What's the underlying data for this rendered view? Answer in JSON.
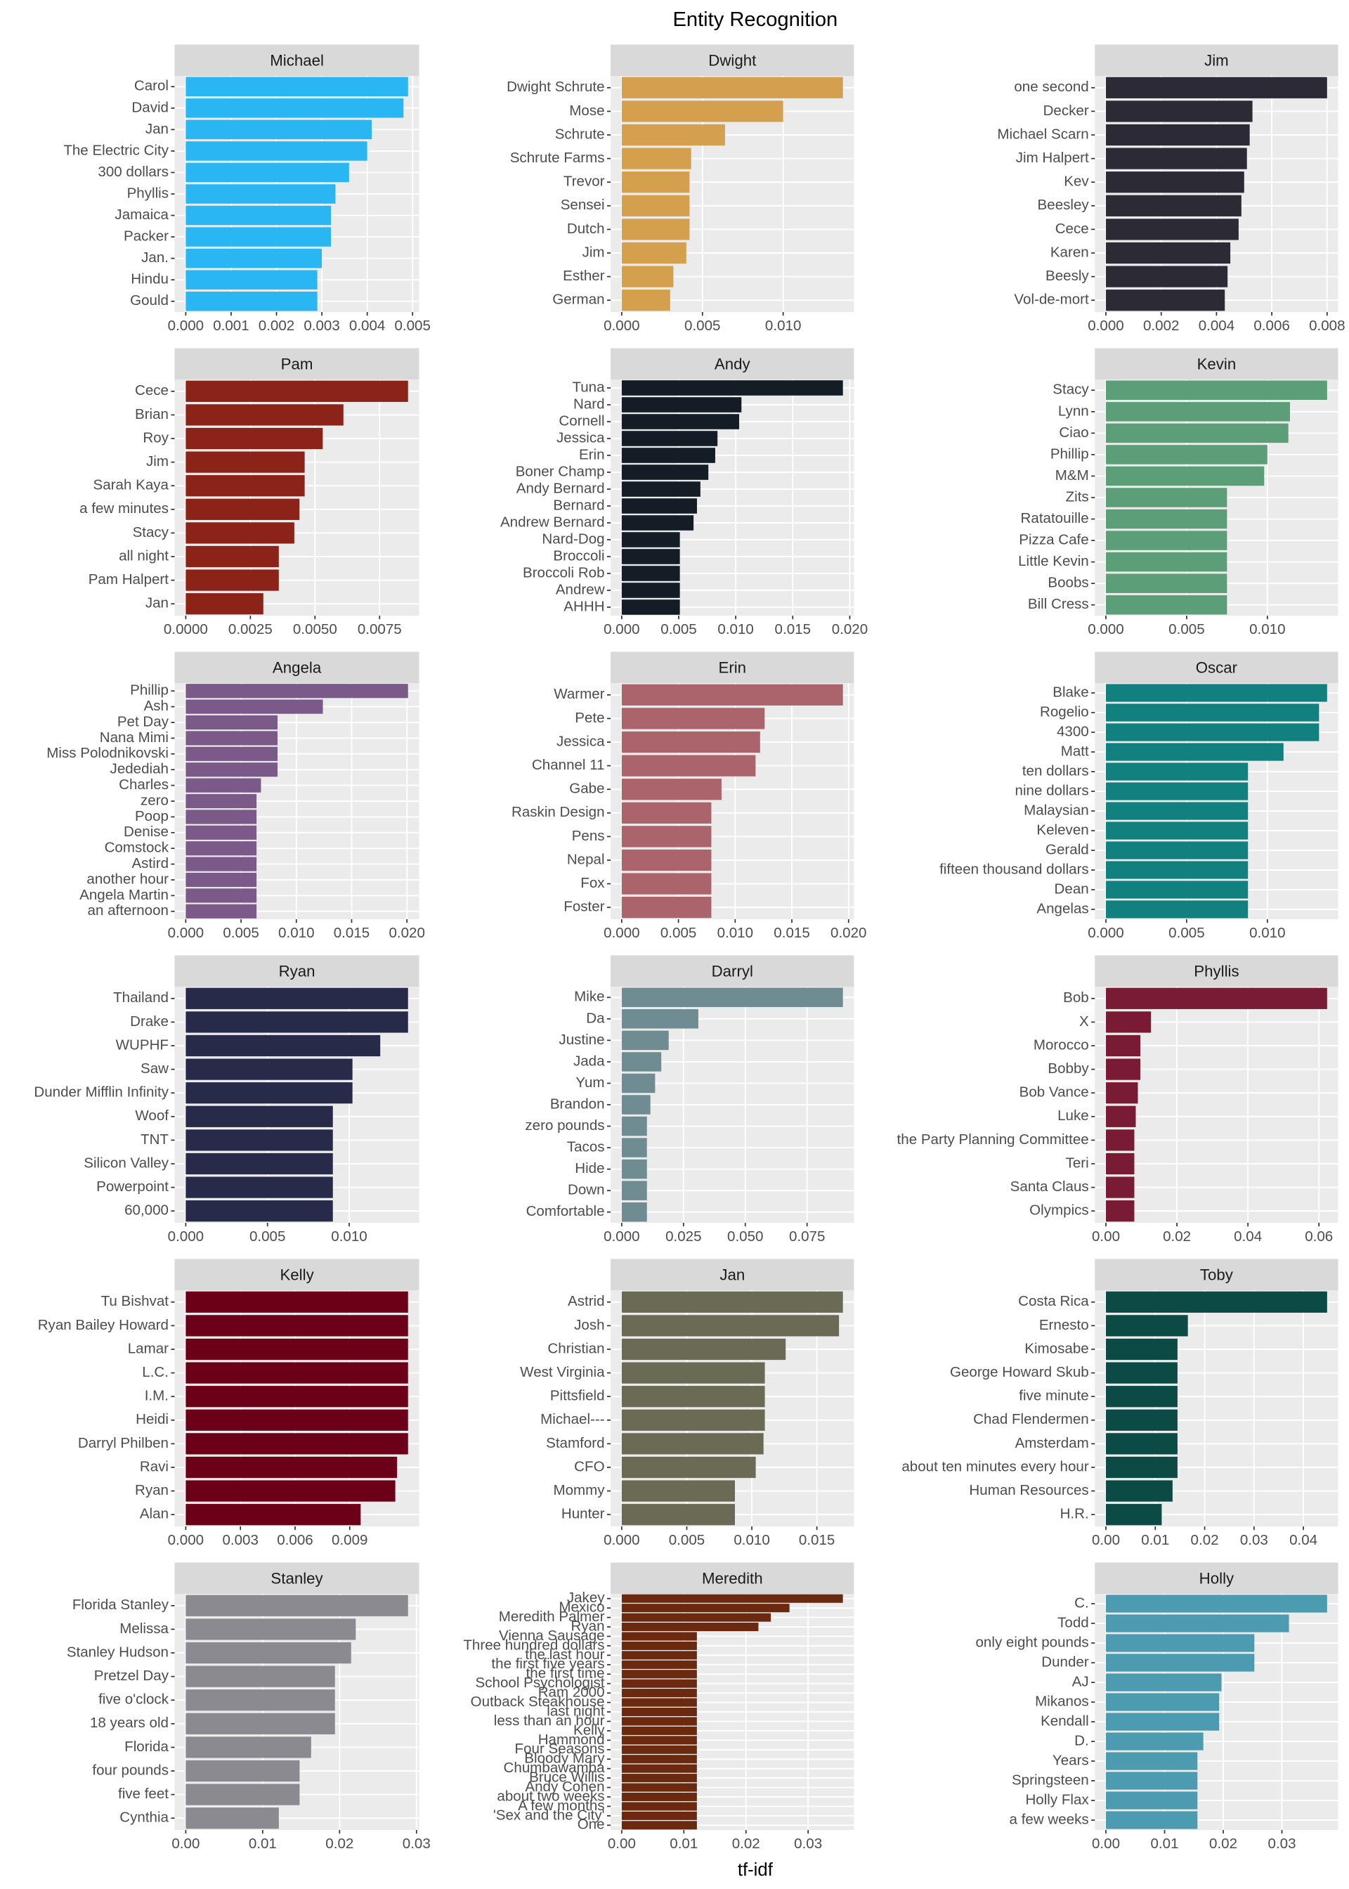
{
  "title": "Entity Recognition",
  "x_label": "tf-idf",
  "chart_data": [
    {
      "type": "bar",
      "orientation": "horizontal",
      "title": "Michael",
      "color": "#29b6f2",
      "grid": true,
      "categories": [
        "Carol",
        "David",
        "Jan",
        "The Electric City",
        "300 dollars",
        "Phyllis",
        "Jamaica",
        "Packer",
        "Jan.",
        "Hindu",
        "Gould"
      ],
      "values": [
        0.0049,
        0.0048,
        0.0041,
        0.004,
        0.0036,
        0.0033,
        0.0032,
        0.0032,
        0.003,
        0.0029,
        0.0029
      ],
      "xlim": [
        -0.000245,
        0.005145
      ],
      "xticks": [
        {
          "value": 0,
          "label": "0.000"
        },
        0.001,
        0.002,
        0.003,
        0.004,
        0.005
      ]
    },
    {
      "type": "bar",
      "orientation": "horizontal",
      "title": "Dwight",
      "color": "#d4a04d",
      "grid": true,
      "categories": [
        "Dwight Schrute",
        "Mose",
        "Schrute",
        "Schrute Farms",
        "Trevor",
        "Sensei",
        "Dutch",
        "Jim",
        "Esther",
        "German"
      ],
      "values": [
        0.0137,
        0.01,
        0.0064,
        0.0043,
        0.0042,
        0.0042,
        0.0042,
        0.004,
        0.0032,
        0.003
      ],
      "xlim": [
        -0.000685,
        0.014385
      ],
      "xticks": [
        {
          "value": 0,
          "label": "0.000"
        },
        0.005,
        {
          "value": 0.01,
          "label": "0.010"
        }
      ]
    },
    {
      "type": "bar",
      "orientation": "horizontal",
      "title": "Jim",
      "color": "#2b2a35",
      "grid": true,
      "categories": [
        "one second",
        "Decker",
        "Michael Scarn",
        "Jim Halpert",
        "Kev",
        "Beesley",
        "Cece",
        "Karen",
        "Beesly",
        "Vol-de-mort"
      ],
      "values": [
        0.008,
        0.0053,
        0.0052,
        0.0051,
        0.005,
        0.0049,
        0.0048,
        0.0045,
        0.0044,
        0.0043
      ],
      "xlim": [
        -0.0004,
        0.0084
      ],
      "xticks": [
        {
          "value": 0,
          "label": "0.000"
        },
        0.002,
        0.004,
        0.006,
        0.008
      ]
    },
    {
      "type": "bar",
      "orientation": "horizontal",
      "title": "Pam",
      "color": "#8b2319",
      "grid": true,
      "categories": [
        "Cece",
        "Brian",
        "Roy",
        "Jim",
        "Sarah Kaya",
        "a few minutes",
        "Stacy",
        "all night",
        "Pam Halpert",
        "Jan"
      ],
      "values": [
        0.0086,
        0.0061,
        0.0053,
        0.0046,
        0.0046,
        0.0044,
        0.0042,
        0.0036,
        0.0036,
        0.003
      ],
      "xlim": [
        -0.00043,
        0.00903
      ],
      "xticks": [
        {
          "value": 0,
          "label": "0.0000"
        },
        0.0025,
        {
          "value": 0.005,
          "label": "0.0050"
        },
        0.0075
      ]
    },
    {
      "type": "bar",
      "orientation": "horizontal",
      "title": "Andy",
      "color": "#141c26",
      "grid": true,
      "categories": [
        "Tuna",
        "Nard",
        "Cornell",
        "Jessica",
        "Erin",
        "Boner Champ",
        "Andy Bernard",
        "Bernard",
        "Andrew Bernard",
        "Nard-Dog",
        "Broccoli",
        "Broccoli Rob",
        "Andrew",
        "AHHH"
      ],
      "values": [
        0.0194,
        0.0105,
        0.0103,
        0.0084,
        0.0082,
        0.0076,
        0.0069,
        0.0066,
        0.0063,
        0.0051,
        0.0051,
        0.0051,
        0.0051,
        0.0051
      ],
      "xlim": [
        -0.00097,
        0.02037
      ],
      "xticks": [
        {
          "value": 0,
          "label": "0.000"
        },
        0.005,
        {
          "value": 0.01,
          "label": "0.010"
        },
        0.015,
        {
          "value": 0.02,
          "label": "0.020"
        }
      ]
    },
    {
      "type": "bar",
      "orientation": "horizontal",
      "title": "Kevin",
      "color": "#5c9e78",
      "grid": true,
      "categories": [
        "Stacy",
        "Lynn",
        "Ciao",
        "Phillip",
        "M&M",
        "Zits",
        "Ratatouille",
        "Pizza Cafe",
        "Little Kevin",
        "Boobs",
        "Bill Cress"
      ],
      "values": [
        0.0137,
        0.0114,
        0.0113,
        0.01,
        0.0098,
        0.0075,
        0.0075,
        0.0075,
        0.0075,
        0.0075,
        0.0075
      ],
      "xlim": [
        -0.000685,
        0.014385
      ],
      "xticks": [
        {
          "value": 0,
          "label": "0.000"
        },
        0.005,
        {
          "value": 0.01,
          "label": "0.010"
        }
      ]
    },
    {
      "type": "bar",
      "orientation": "horizontal",
      "title": "Angela",
      "color": "#7b5a89",
      "grid": true,
      "categories": [
        "Phillip",
        "Ash",
        "Pet Day",
        "Nana Mimi",
        "Miss Polodnikovski",
        "Jedediah",
        "Charles",
        "zero",
        "Poop",
        "Denise",
        "Comstock",
        "Astird",
        "another hour",
        "Angela Martin",
        "an afternoon"
      ],
      "values": [
        0.0201,
        0.0124,
        0.0083,
        0.0083,
        0.0083,
        0.0083,
        0.0068,
        0.0064,
        0.0064,
        0.0064,
        0.0064,
        0.0064,
        0.0064,
        0.0064,
        0.0064
      ],
      "xlim": [
        -0.001005,
        0.021105
      ],
      "xticks": [
        {
          "value": 0,
          "label": "0.000"
        },
        0.005,
        {
          "value": 0.01,
          "label": "0.010"
        },
        0.015,
        {
          "value": 0.02,
          "label": "0.020"
        }
      ]
    },
    {
      "type": "bar",
      "orientation": "horizontal",
      "title": "Erin",
      "color": "#ab636c",
      "grid": true,
      "categories": [
        "Warmer",
        "Pete",
        "Jessica",
        "Channel 11",
        "Gabe",
        "Raskin Design",
        "Pens",
        "Nepal",
        "Fox",
        "Foster"
      ],
      "values": [
        0.0195,
        0.0126,
        0.0122,
        0.0118,
        0.0088,
        0.0079,
        0.0079,
        0.0079,
        0.0079,
        0.0079
      ],
      "xlim": [
        -0.000975,
        0.020475
      ],
      "xticks": [
        {
          "value": 0,
          "label": "0.000"
        },
        0.005,
        {
          "value": 0.01,
          "label": "0.010"
        },
        0.015,
        {
          "value": 0.02,
          "label": "0.020"
        }
      ]
    },
    {
      "type": "bar",
      "orientation": "horizontal",
      "title": "Oscar",
      "color": "#12807f",
      "grid": true,
      "categories": [
        "Blake",
        "Rogelio",
        "4300",
        "Matt",
        "ten dollars",
        "nine dollars",
        "Malaysian",
        "Keleven",
        "Gerald",
        "fifteen thousand dollars",
        "Dean",
        "Angelas"
      ],
      "values": [
        0.0137,
        0.0132,
        0.0132,
        0.011,
        0.0088,
        0.0088,
        0.0088,
        0.0088,
        0.0088,
        0.0088,
        0.0088,
        0.0088
      ],
      "xlim": [
        -0.000685,
        0.014385
      ],
      "xticks": [
        {
          "value": 0,
          "label": "0.000"
        },
        0.005,
        {
          "value": 0.01,
          "label": "0.010"
        }
      ]
    },
    {
      "type": "bar",
      "orientation": "horizontal",
      "title": "Ryan",
      "color": "#272a48",
      "grid": true,
      "categories": [
        "Thailand",
        "Drake",
        "WUPHF",
        "Saw",
        "Dunder Mifflin Infinity",
        "Woof",
        "TNT",
        "Silicon Valley",
        "Powerpoint",
        "60,000"
      ],
      "values": [
        0.0136,
        0.0136,
        0.0119,
        0.0102,
        0.0102,
        0.009,
        0.009,
        0.009,
        0.009,
        0.009
      ],
      "xlim": [
        -0.00068,
        0.01428
      ],
      "xticks": [
        {
          "value": 0,
          "label": "0.000"
        },
        0.005,
        {
          "value": 0.01,
          "label": "0.010"
        }
      ]
    },
    {
      "type": "bar",
      "orientation": "horizontal",
      "title": "Darryl",
      "color": "#6e8c91",
      "grid": true,
      "categories": [
        "Mike",
        "Da",
        "Justine",
        "Jada",
        "Yum",
        "Brandon",
        "zero pounds",
        "Tacos",
        "Hide",
        "Down",
        "Comfortable"
      ],
      "values": [
        0.0895,
        0.031,
        0.019,
        0.016,
        0.0135,
        0.0116,
        0.0102,
        0.0102,
        0.0102,
        0.0102,
        0.0102
      ],
      "xlim": [
        -0.004475,
        0.093975
      ],
      "xticks": [
        {
          "value": 0,
          "label": "0.000"
        },
        0.025,
        {
          "value": 0.05,
          "label": "0.050"
        },
        0.075
      ]
    },
    {
      "type": "bar",
      "orientation": "horizontal",
      "title": "Phyllis",
      "color": "#7a1b35",
      "grid": true,
      "categories": [
        "Bob",
        "X",
        "Morocco",
        "Bobby",
        "Bob Vance",
        "Luke",
        "the Party Planning Committee",
        "Teri",
        "Santa Claus",
        "Olympics"
      ],
      "values": [
        0.0623,
        0.0127,
        0.0097,
        0.0097,
        0.009,
        0.0084,
        0.008,
        0.008,
        0.008,
        0.008
      ],
      "xlim": [
        -0.003115,
        0.065415
      ],
      "xticks": [
        {
          "value": 0,
          "label": "0.00"
        },
        0.02,
        0.04,
        0.06
      ]
    },
    {
      "type": "bar",
      "orientation": "horizontal",
      "title": "Kelly",
      "color": "#6d0019",
      "grid": true,
      "categories": [
        "Tu Bishvat",
        "Ryan Bailey Howard",
        "Lamar",
        "L.C.",
        "I.M.",
        "Heidi",
        "Darryl Philben",
        "Ravi",
        "Ryan",
        "Alan"
      ],
      "values": [
        0.0122,
        0.0122,
        0.0122,
        0.0122,
        0.0122,
        0.0122,
        0.0122,
        0.0116,
        0.0115,
        0.0096
      ],
      "xlim": [
        -0.00061,
        0.01281
      ],
      "xticks": [
        {
          "value": 0,
          "label": "0.000"
        },
        0.003,
        0.006,
        0.009
      ]
    },
    {
      "type": "bar",
      "orientation": "horizontal",
      "title": "Jan",
      "color": "#6b6a55",
      "grid": true,
      "categories": [
        "Astrid",
        "Josh",
        "Christian",
        "West Virginia",
        "Pittsfield",
        "Michael---",
        "Stamford",
        "CFO",
        "Mommy",
        "Hunter"
      ],
      "values": [
        0.017,
        0.0167,
        0.0126,
        0.011,
        0.011,
        0.011,
        0.0109,
        0.0103,
        0.0087,
        0.0087
      ],
      "xlim": [
        -0.00085,
        0.01785
      ],
      "xticks": [
        {
          "value": 0,
          "label": "0.000"
        },
        0.005,
        {
          "value": 0.01,
          "label": "0.010"
        },
        0.015
      ]
    },
    {
      "type": "bar",
      "orientation": "horizontal",
      "title": "Toby",
      "color": "#0c4a45",
      "grid": true,
      "categories": [
        "Costa Rica",
        "Ernesto",
        "Kimosabe",
        "George Howard Skub",
        "five minute",
        "Chad Flendermen",
        "Amsterdam",
        "about ten minutes every hour",
        "Human Resources",
        "H.R."
      ],
      "values": [
        0.0448,
        0.0166,
        0.0145,
        0.0145,
        0.0145,
        0.0145,
        0.0145,
        0.0145,
        0.0135,
        0.0113
      ],
      "xlim": [
        -0.00224,
        0.04704
      ],
      "xticks": [
        {
          "value": 0,
          "label": "0.00"
        },
        0.01,
        0.02,
        0.03,
        0.04
      ]
    },
    {
      "type": "bar",
      "orientation": "horizontal",
      "title": "Stanley",
      "color": "#8c8a91",
      "grid": true,
      "categories": [
        "Florida Stanley",
        "Melissa",
        "Stanley Hudson",
        "Pretzel Day",
        "five o'clock",
        "18 years old",
        "Florida",
        "four pounds",
        "five feet",
        "Cynthia"
      ],
      "values": [
        0.0289,
        0.0221,
        0.0215,
        0.0194,
        0.0194,
        0.0194,
        0.0163,
        0.0148,
        0.0148,
        0.0121
      ],
      "xlim": [
        -0.001445,
        0.030345
      ],
      "xticks": [
        {
          "value": 0,
          "label": "0.00"
        },
        0.01,
        0.02,
        0.03
      ]
    },
    {
      "type": "bar",
      "orientation": "horizontal",
      "title": "Meredith",
      "color": "#6b2a10",
      "grid": true,
      "categories": [
        "Jakey",
        "Mexico",
        "Meredith Palmer",
        "Ryan",
        "Vienna Sausage",
        "Three hundred dollars",
        "the last hour",
        "the first five years",
        "the first time",
        "School Psychologist",
        "Ram 2000",
        "Outback Steakhouse",
        "last night",
        "less than an hour",
        "Kelly",
        "Hammond",
        "Four Seasons",
        "Bloody Mary",
        "Chumbawamba",
        "Bruce Willis",
        "Andy Cohen",
        "about two weeks",
        "A few months",
        "'Sex and the City'",
        "One"
      ],
      "values": [
        0.0356,
        0.027,
        0.024,
        0.022,
        0.0121,
        0.0121,
        0.0121,
        0.0121,
        0.0121,
        0.0121,
        0.0121,
        0.0121,
        0.0121,
        0.0121,
        0.0121,
        0.0121,
        0.0121,
        0.0121,
        0.0121,
        0.0121,
        0.0121,
        0.0121,
        0.0121,
        0.0121,
        0.0121
      ],
      "xlim": [
        -0.00178,
        0.03738
      ],
      "xticks": [
        {
          "value": 0,
          "label": "0.00"
        },
        0.01,
        0.02,
        0.03
      ]
    },
    {
      "type": "bar",
      "orientation": "horizontal",
      "title": "Holly",
      "color": "#4d9bb0",
      "grid": true,
      "categories": [
        "C.",
        "Todd",
        "only eight pounds",
        "Dunder",
        "AJ",
        "Mikanos",
        "Kendall",
        "D.",
        "Years",
        "Springsteen",
        "Holly Flax",
        "a few weeks"
      ],
      "values": [
        0.0377,
        0.0312,
        0.0253,
        0.0253,
        0.0197,
        0.0193,
        0.0193,
        0.0166,
        0.0156,
        0.0156,
        0.0156,
        0.0156
      ],
      "xlim": [
        -0.001885,
        0.039585
      ],
      "xticks": [
        {
          "value": 0,
          "label": "0.00"
        },
        0.01,
        0.02,
        0.03
      ]
    }
  ]
}
